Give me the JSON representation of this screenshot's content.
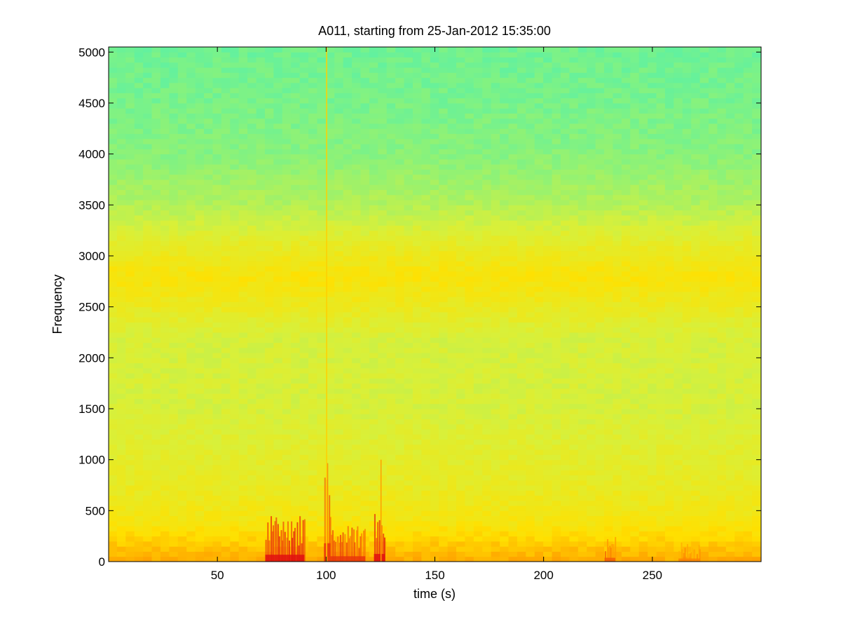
{
  "chart_data": {
    "type": "heatmap",
    "title": "A011, starting from 25-Jan-2012 15:35:00",
    "xlabel": "time (s)",
    "ylabel": "Frequency",
    "xlim": [
      0,
      300
    ],
    "ylim": [
      0,
      5050
    ],
    "x_ticks": [
      50,
      100,
      150,
      200,
      250
    ],
    "y_ticks": [
      0,
      500,
      1000,
      1500,
      2000,
      2500,
      3000,
      3500,
      4000,
      4500,
      5000
    ],
    "colormap": [
      "#00d8e8",
      "#36f0c8",
      "#8af27a",
      "#d8f03a",
      "#ffe000",
      "#ff9000",
      "#e01010"
    ],
    "background_level_by_frequency": [
      {
        "frequency": 0,
        "level": 0.78
      },
      {
        "frequency": 150,
        "level": 0.72
      },
      {
        "frequency": 400,
        "level": 0.62
      },
      {
        "frequency": 800,
        "level": 0.56
      },
      {
        "frequency": 1500,
        "level": 0.5
      },
      {
        "frequency": 2200,
        "level": 0.5
      },
      {
        "frequency": 2600,
        "level": 0.6
      },
      {
        "frequency": 2800,
        "level": 0.64
      },
      {
        "frequency": 3100,
        "level": 0.56
      },
      {
        "frequency": 3500,
        "level": 0.42
      },
      {
        "frequency": 4000,
        "level": 0.33
      },
      {
        "frequency": 4500,
        "level": 0.3
      },
      {
        "frequency": 5050,
        "level": 0.28
      }
    ],
    "bursts": [
      {
        "time_start": 72,
        "time_end": 90,
        "freq_max": 450,
        "level": 1.0
      },
      {
        "time_start": 99,
        "time_end": 102,
        "freq_max": 1200,
        "level": 0.95
      },
      {
        "time_start": 102,
        "time_end": 118,
        "freq_max": 350,
        "level": 0.95
      },
      {
        "time_start": 122,
        "time_end": 127,
        "freq_max": 500,
        "level": 1.0
      },
      {
        "time_start": 228,
        "time_end": 233,
        "freq_max": 250,
        "level": 0.9
      },
      {
        "time_start": 262,
        "time_end": 272,
        "freq_max": 200,
        "level": 0.85
      }
    ],
    "vertical_lines": [
      {
        "time": 100,
        "freq_max": 5050,
        "level": 0.7
      },
      {
        "time": 125,
        "freq_max": 1000,
        "level": 0.8
      }
    ]
  }
}
